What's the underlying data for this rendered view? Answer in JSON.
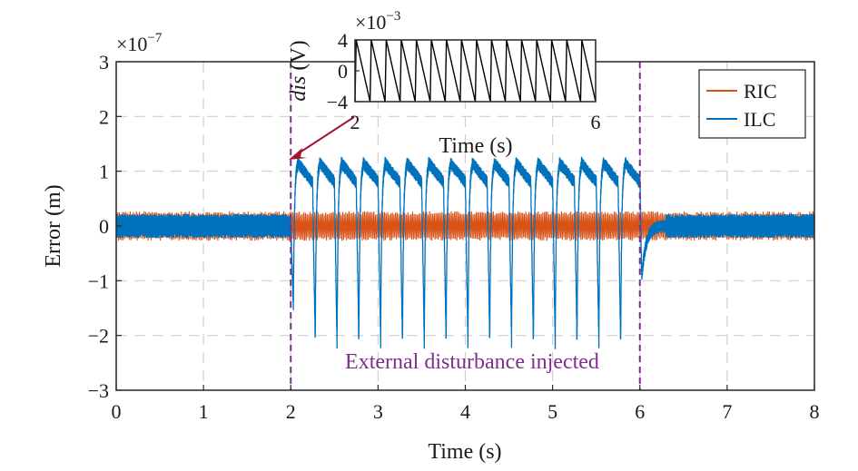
{
  "chart_data": [
    {
      "type": "line",
      "xlabel": "Time (s)",
      "ylabel": "Error (m)",
      "y_exponent_label": "×10",
      "y_exponent": "−7",
      "xlim": [
        0,
        8
      ],
      "ylim": [
        -3,
        3
      ],
      "x_ticks": [
        0,
        1,
        2,
        3,
        4,
        5,
        6,
        7,
        8
      ],
      "x_tick_labels": [
        "0",
        "1",
        "2",
        "3",
        "4",
        "5",
        "6",
        "7",
        "8"
      ],
      "y_ticks": [
        -3,
        -2,
        -1,
        0,
        1,
        2,
        3
      ],
      "y_tick_labels": [
        "−3",
        "−2",
        "−1",
        "0",
        "1",
        "2",
        "3"
      ],
      "grid": true,
      "legend_placement": "top-right",
      "series": [
        {
          "name": "RIC",
          "color": "#D95319",
          "description_values": {
            "noise_band": [
              -0.27,
              0.27
            ]
          },
          "x": [
            0,
            1,
            2,
            3,
            4,
            5,
            6,
            7,
            8
          ],
          "y": [
            0,
            0,
            0,
            0,
            0,
            0,
            0,
            0,
            0
          ]
        },
        {
          "name": "ILC",
          "color": "#0072BD",
          "x": [
            0,
            2,
            2.03,
            2.1,
            2.2,
            2.24,
            2.25,
            2.3,
            2.35,
            2.5,
            3.0,
            3.5,
            4.0,
            4.5,
            5.0,
            5.5,
            6.0,
            6.02,
            6.1,
            6.3,
            7,
            8
          ],
          "y": [
            0,
            0,
            -1.45,
            0.6,
            1.15,
            1.0,
            0.9,
            -2.15,
            0.8,
            1.15,
            1.15,
            1.15,
            1.15,
            1.15,
            1.15,
            1.15,
            1.1,
            -0.95,
            -0.2,
            0,
            0,
            0
          ],
          "periodic_peak": 1.15,
          "periodic_trough": -2.15,
          "period_s": 0.25
        }
      ],
      "vlines": [
        2,
        6
      ],
      "vline_color": "#7E2F8E",
      "annotation": "External disturbance injected"
    },
    {
      "type": "line",
      "description": "inset",
      "ylabel_italic": "dis",
      "ylabel_unit": " (V)",
      "xlabel": "Time (s)",
      "y_exponent_label": "×10",
      "y_exponent": "−3",
      "xlim": [
        2,
        6
      ],
      "ylim": [
        -4,
        4
      ],
      "x_ticks": [
        2,
        6
      ],
      "x_tick_labels": [
        "2",
        "6"
      ],
      "y_ticks": [
        4,
        0,
        -4
      ],
      "y_tick_labels": [
        "4",
        "0",
        "−4"
      ],
      "series": [
        {
          "color": "#000000",
          "waveform": "sawtooth",
          "amplitude": 4,
          "period_s": 0.25
        }
      ]
    }
  ],
  "colors": {
    "ric": "#D95319",
    "ilc": "#0072BD",
    "disturbance": "#7E2F8E",
    "arrow": "#A2142F",
    "grid": "#d0d0d0"
  }
}
